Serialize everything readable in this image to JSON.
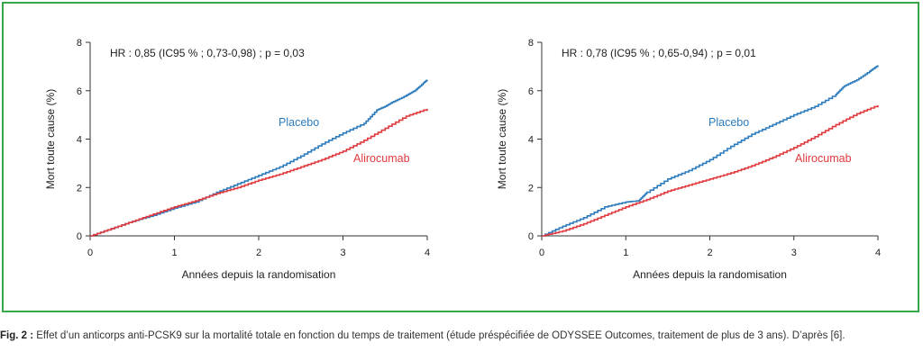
{
  "colors": {
    "frame": "#3aa64a",
    "placebo": "#2b7bbd",
    "alirocumab": "#e03a3e"
  },
  "caption": {
    "label": "Fig. 2 :",
    "text": " Effet d’un anticorps anti-PCSK9 sur la mortalité totale en fonction du temps de traitement (étude préspécifiée de ODYSSEE Outcomes, traitement de plus de 3 ans). D’après [6]."
  },
  "chart_data": [
    {
      "type": "line",
      "annotation": "HR : 0,85 (IC95 % ; 0,73-0,98) ; p = 0,03",
      "xlabel": "Années depuis la randomisation",
      "ylabel": "Mort toute cause (%)",
      "xlim": [
        0,
        4
      ],
      "ylim": [
        0,
        8
      ],
      "xticks": [
        "0",
        "1",
        "2",
        "3",
        "4"
      ],
      "yticks": [
        "0",
        "2",
        "4",
        "6",
        "8"
      ],
      "series": [
        {
          "name": "Placebo",
          "x": [
            0,
            0.25,
            0.5,
            0.75,
            1.0,
            1.25,
            1.5,
            1.75,
            2.0,
            2.25,
            2.5,
            2.75,
            3.0,
            3.25,
            3.4,
            3.5,
            3.6,
            3.75,
            3.85,
            3.95,
            4.0
          ],
          "y": [
            0,
            0.3,
            0.6,
            0.85,
            1.15,
            1.4,
            1.8,
            2.15,
            2.5,
            2.85,
            3.3,
            3.8,
            4.25,
            4.65,
            5.2,
            5.35,
            5.55,
            5.8,
            6.0,
            6.3,
            6.45
          ]
        },
        {
          "name": "Alirocumab",
          "x": [
            0,
            0.25,
            0.5,
            0.75,
            1.0,
            1.25,
            1.5,
            1.75,
            2.0,
            2.25,
            2.5,
            2.75,
            3.0,
            3.25,
            3.5,
            3.75,
            4.0
          ],
          "y": [
            0,
            0.3,
            0.6,
            0.9,
            1.2,
            1.45,
            1.75,
            2.0,
            2.3,
            2.55,
            2.85,
            3.15,
            3.5,
            3.95,
            4.45,
            4.95,
            5.25
          ]
        }
      ]
    },
    {
      "type": "line",
      "annotation": "HR : 0,78 (IC95 % ; 0,65-0,94) ; p = 0,01",
      "xlabel": "Années depuis la randomisation",
      "ylabel": "Mort toute cause (%)",
      "xlim": [
        0,
        4
      ],
      "ylim": [
        0,
        8
      ],
      "xticks": [
        "0",
        "1",
        "2",
        "3",
        "4"
      ],
      "yticks": [
        "0",
        "2",
        "4",
        "6",
        "8"
      ],
      "series": [
        {
          "name": "Placebo",
          "x": [
            0,
            0.25,
            0.5,
            0.75,
            1.0,
            1.15,
            1.25,
            1.5,
            1.75,
            2.0,
            2.25,
            2.5,
            2.75,
            3.0,
            3.25,
            3.5,
            3.6,
            3.75,
            3.9,
            4.0
          ],
          "y": [
            0,
            0.4,
            0.75,
            1.2,
            1.4,
            1.45,
            1.8,
            2.35,
            2.7,
            3.15,
            3.7,
            4.2,
            4.6,
            5.0,
            5.35,
            5.85,
            6.2,
            6.45,
            6.8,
            7.05
          ]
        },
        {
          "name": "Alirocumab",
          "x": [
            0,
            0.25,
            0.5,
            0.75,
            1.0,
            1.25,
            1.5,
            1.75,
            2.0,
            2.25,
            2.5,
            2.75,
            3.0,
            3.25,
            3.5,
            3.75,
            4.0
          ],
          "y": [
            0,
            0.2,
            0.5,
            0.85,
            1.2,
            1.5,
            1.85,
            2.1,
            2.35,
            2.6,
            2.9,
            3.25,
            3.65,
            4.1,
            4.6,
            5.05,
            5.4
          ]
        }
      ]
    }
  ]
}
